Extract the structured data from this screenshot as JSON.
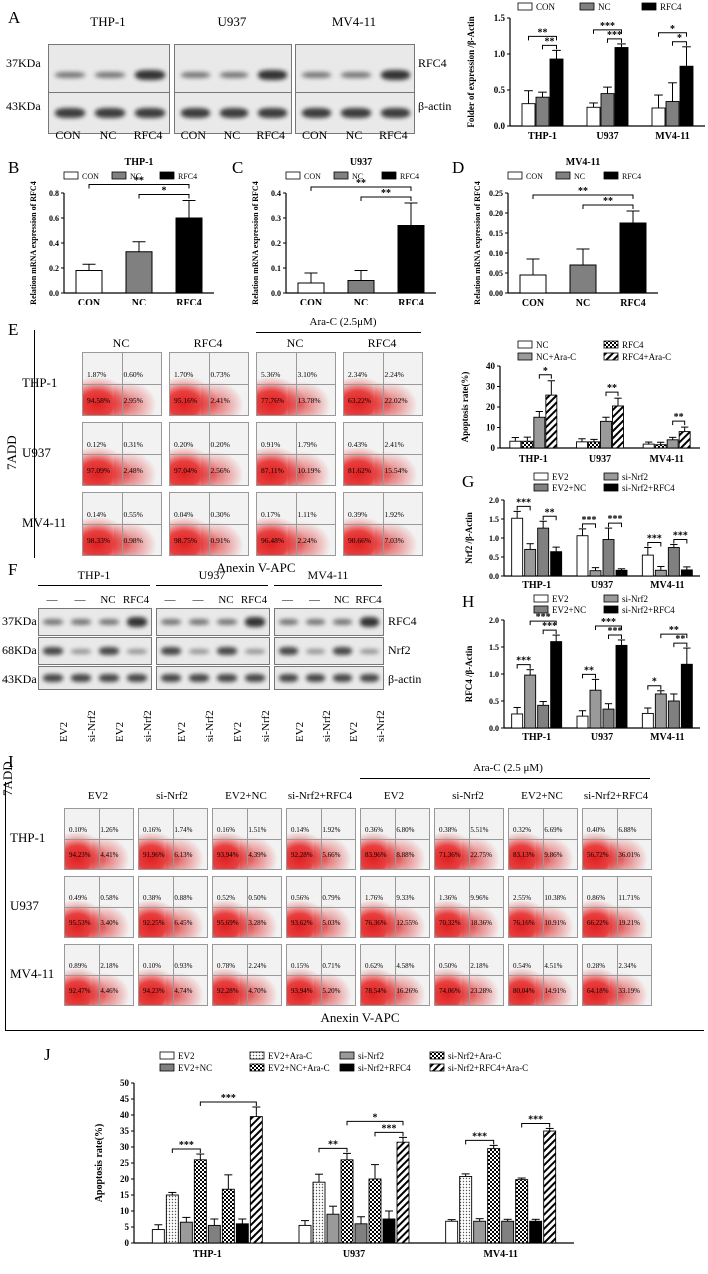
{
  "panels": {
    "A": "A",
    "B": "B",
    "C": "C",
    "D": "D",
    "E": "E",
    "F": "F",
    "G": "G",
    "H": "H",
    "I": "I",
    "J": "J"
  },
  "blotA": {
    "cells": [
      "THP-1",
      "U937",
      "MV4-11"
    ],
    "lanes": [
      "CON",
      "NC",
      "RFC4"
    ],
    "mw": [
      "37KDa",
      "43KDa"
    ],
    "proteins": [
      "RFC4",
      "β-actin"
    ]
  },
  "blotF": {
    "cells": [
      "THP-1",
      "U937",
      "MV4-11"
    ],
    "top": [
      "—",
      "—",
      "NC",
      "RFC4"
    ],
    "bottom": [
      "EV2",
      "si-Nrf2",
      "EV2",
      "si-Nrf2"
    ],
    "mw": [
      "37KDa",
      "68KDa",
      "43KDa"
    ],
    "proteins": [
      "RFC4",
      "Nrf2",
      "β-actin"
    ]
  },
  "flowE": {
    "cols": [
      "NC",
      "RFC4",
      "NC",
      "RFC4"
    ],
    "rows": [
      "THP-1",
      "U937",
      "MV4-11"
    ],
    "treatment": "Ara-C (2.5μM)",
    "xaxis": "Anexin V-APC",
    "yaxis": "7ADD",
    "quads": [
      [
        [
          "1.87%",
          "0.60%",
          "94.58%",
          "2.95%"
        ],
        [
          "1.70%",
          "0.73%",
          "95.16%",
          "2.41%"
        ],
        [
          "5.36%",
          "3.10%",
          "77.76%",
          "13.78%"
        ],
        [
          "2.34%",
          "2.24%",
          "63.22%",
          "22.02%"
        ]
      ],
      [
        [
          "0.12%",
          "0.31%",
          "97.09%",
          "2.48%"
        ],
        [
          "0.20%",
          "0.20%",
          "97.04%",
          "2.56%"
        ],
        [
          "0.91%",
          "1.79%",
          "87.11%",
          "10.19%"
        ],
        [
          "0.43%",
          "2.41%",
          "81.62%",
          "15.54%"
        ]
      ],
      [
        [
          "0.14%",
          "0.55%",
          "98.33%",
          "0.98%"
        ],
        [
          "0.04%",
          "0.30%",
          "98.75%",
          "0.91%"
        ],
        [
          "0.17%",
          "1.11%",
          "96.48%",
          "2.24%"
        ],
        [
          "0.39%",
          "1.92%",
          "90.66%",
          "7.03%"
        ]
      ]
    ]
  },
  "flowI": {
    "cols": [
      "EV2",
      "si-Nrf2",
      "EV2+NC",
      "si-Nrf2+RFC4",
      "EV2",
      "si-Nrf2",
      "EV2+NC",
      "si-Nrf2+RFC4"
    ],
    "rows": [
      "THP-1",
      "U937",
      "MV4-11"
    ],
    "treatment": "Ara-C (2.5 μM)",
    "xaxis": "Anexin V-APC",
    "yaxis": "7ADD",
    "quads": [
      [
        [
          "0.10%",
          "1.26%",
          "94.23%",
          "4.41%"
        ],
        [
          "0.16%",
          "1.74%",
          "91.96%",
          "6.13%"
        ],
        [
          "0.16%",
          "1.51%",
          "93.94%",
          "4.39%"
        ],
        [
          "0.14%",
          "1.92%",
          "92.28%",
          "5.66%"
        ],
        [
          "0.36%",
          "6.80%",
          "83.96%",
          "8.88%"
        ],
        [
          "0.38%",
          "5.51%",
          "71.36%",
          "22.75%"
        ],
        [
          "0.32%",
          "6.69%",
          "83.13%",
          "9.86%"
        ],
        [
          "0.40%",
          "6.88%",
          "56.72%",
          "36.01%"
        ]
      ],
      [
        [
          "0.49%",
          "0.58%",
          "95.53%",
          "3.40%"
        ],
        [
          "0.38%",
          "0.88%",
          "92.25%",
          "6.45%"
        ],
        [
          "0.52%",
          "0.50%",
          "95.69%",
          "3.28%"
        ],
        [
          "0.56%",
          "0.79%",
          "93.62%",
          "5.03%"
        ],
        [
          "1.76%",
          "9.33%",
          "76.36%",
          "12.55%"
        ],
        [
          "1.36%",
          "9.96%",
          "70.32%",
          "18.36%"
        ],
        [
          "2.55%",
          "10.38%",
          "76.16%",
          "10.91%"
        ],
        [
          "0.86%",
          "11.71%",
          "66.22%",
          "19.21%"
        ]
      ],
      [
        [
          "0.89%",
          "2.18%",
          "92.47%",
          "4.46%"
        ],
        [
          "0.10%",
          "0.93%",
          "94.23%",
          "4.74%"
        ],
        [
          "0.78%",
          "2.24%",
          "92.28%",
          "4.70%"
        ],
        [
          "0.15%",
          "0.71%",
          "93.94%",
          "5.20%"
        ],
        [
          "0.62%",
          "4.58%",
          "78.54%",
          "16.26%"
        ],
        [
          "0.50%",
          "2.18%",
          "74.06%",
          "23.28%"
        ],
        [
          "0.54%",
          "4.51%",
          "80.04%",
          "14.91%"
        ],
        [
          "0.28%",
          "2.34%",
          "64.18%",
          "33.19%"
        ]
      ]
    ]
  },
  "chart_data": [
    {
      "id": "A",
      "type": "bar",
      "categories": [
        "THP-1",
        "U937",
        "MV4-11"
      ],
      "ylabel": "Folder of expression /β-Actin",
      "ylim": [
        0,
        1.5
      ],
      "ticks": [
        "0.0",
        "0.5",
        "1.0",
        "1.5"
      ],
      "series": [
        {
          "name": "CON",
          "values": [
            0.31,
            0.26,
            0.25
          ],
          "err": [
            0.18,
            0.06,
            0.18
          ]
        },
        {
          "name": "NC",
          "values": [
            0.4,
            0.45,
            0.34
          ],
          "err": [
            0.07,
            0.09,
            0.26
          ]
        },
        {
          "name": "RFC4",
          "values": [
            0.93,
            1.09,
            0.83
          ],
          "err": [
            0.12,
            0.05,
            0.27
          ]
        }
      ],
      "sig": [
        [
          "**",
          "**"
        ],
        [
          "***",
          "***"
        ],
        [
          "*",
          "*"
        ]
      ]
    },
    {
      "id": "B",
      "type": "bar",
      "title": "THP-1",
      "categories": [
        "CON",
        "NC",
        "RFC4"
      ],
      "values": [
        0.18,
        0.33,
        0.6
      ],
      "err": [
        0.05,
        0.08,
        0.14
      ],
      "ylabel": "Relation mRNA expression of RFC4",
      "ylim": [
        0,
        0.8
      ],
      "ticks": [
        "0.0",
        "0.2",
        "0.4",
        "0.6",
        "0.8"
      ],
      "legend": [
        "CON",
        "NC",
        "RFC4"
      ],
      "sig": [
        "**",
        "*"
      ]
    },
    {
      "id": "C",
      "type": "bar",
      "title": "U937",
      "categories": [
        "CON",
        "NC",
        "RFC4"
      ],
      "values": [
        0.04,
        0.05,
        0.27
      ],
      "err": [
        0.04,
        0.04,
        0.09
      ],
      "ylabel": "Relation mRNA expression of RFC4",
      "ylim": [
        0,
        0.4
      ],
      "ticks": [
        "0.0",
        "0.1",
        "0.2",
        "0.3",
        "0.4"
      ],
      "legend": [
        "CON",
        "NC",
        "RFC4"
      ],
      "sig": [
        "**",
        "**"
      ]
    },
    {
      "id": "D",
      "type": "bar",
      "title": "MV4-11",
      "categories": [
        "CON",
        "NC",
        "RFC4"
      ],
      "values": [
        0.045,
        0.07,
        0.175
      ],
      "err": [
        0.04,
        0.04,
        0.03
      ],
      "ylabel": "Relation mRNA expression of RFC4",
      "ylim": [
        0,
        0.25
      ],
      "ticks": [
        "0.00",
        "0.05",
        "0.10",
        "0.15",
        "0.20",
        "0.25"
      ],
      "legend": [
        "CON",
        "NC",
        "RFC4"
      ],
      "sig": [
        "**",
        "**"
      ]
    },
    {
      "id": "E",
      "type": "bar",
      "categories": [
        "THP-1",
        "U937",
        "MV4-11"
      ],
      "ylabel": "Apoptosis rate(%)",
      "ylim": [
        0,
        40
      ],
      "ticks": [
        "0",
        "10",
        "20",
        "30",
        "40"
      ],
      "series": [
        {
          "name": "NC",
          "values": [
            3.3,
            3.0,
            1.9
          ],
          "err": [
            1.8,
            1.5,
            1.0
          ]
        },
        {
          "name": "RFC4",
          "values": [
            3.3,
            3.0,
            1.6
          ],
          "err": [
            2.0,
            1.2,
            1.2
          ]
        },
        {
          "name": "NC+Ara-C",
          "values": [
            15.0,
            13.0,
            4.0
          ],
          "err": [
            2.8,
            2.0,
            1.2
          ]
        },
        {
          "name": "RFC4+Ara-C",
          "values": [
            25.8,
            20.5,
            8.0
          ],
          "err": [
            7.0,
            3.8,
            2.2
          ]
        }
      ],
      "sig": [
        "*",
        "**",
        "**"
      ]
    },
    {
      "id": "G",
      "type": "bar",
      "categories": [
        "THP-1",
        "U937",
        "MV4-11"
      ],
      "ylabel": "Nrf2 /β-Actin",
      "ylim": [
        0,
        2.0
      ],
      "ticks": [
        "0.0",
        "0.5",
        "1.0",
        "1.5",
        "2.0"
      ],
      "series": [
        {
          "name": "EV2",
          "values": [
            1.52,
            1.06,
            0.55
          ],
          "err": [
            0.18,
            0.18,
            0.2
          ]
        },
        {
          "name": "si-Nrf2",
          "values": [
            0.7,
            0.14,
            0.15
          ],
          "err": [
            0.15,
            0.08,
            0.1
          ]
        },
        {
          "name": "EV2+NC",
          "values": [
            1.26,
            0.96,
            0.75
          ],
          "err": [
            0.18,
            0.3,
            0.08
          ]
        },
        {
          "name": "si-Nrf2+RFC4",
          "values": [
            0.64,
            0.15,
            0.16
          ],
          "err": [
            0.12,
            0.04,
            0.08
          ]
        }
      ],
      "sig": [
        [
          "***",
          "**"
        ],
        [
          "***",
          "***"
        ],
        [
          "***",
          "***"
        ]
      ]
    },
    {
      "id": "H",
      "type": "bar",
      "categories": [
        "THP-1",
        "U937",
        "MV4-11"
      ],
      "ylabel": "RFC4 /β-Actin",
      "ylim": [
        0,
        2.0
      ],
      "ticks": [
        "0.0",
        "0.5",
        "1.0",
        "1.5",
        "2.0"
      ],
      "series": [
        {
          "name": "EV2",
          "values": [
            0.26,
            0.22,
            0.27
          ],
          "err": [
            0.12,
            0.1,
            0.1
          ]
        },
        {
          "name": "si-Nrf2",
          "values": [
            0.98,
            0.7,
            0.63
          ],
          "err": [
            0.1,
            0.2,
            0.06
          ]
        },
        {
          "name": "EV2+NC",
          "values": [
            0.42,
            0.35,
            0.5
          ],
          "err": [
            0.07,
            0.1,
            0.13
          ]
        },
        {
          "name": "si-Nrf2+RFC4",
          "values": [
            1.6,
            1.53,
            1.18
          ],
          "err": [
            0.12,
            0.1,
            0.3
          ]
        }
      ],
      "sig": [
        [
          "***",
          "***",
          "***"
        ],
        [
          "**",
          "***",
          "***"
        ],
        [
          "*",
          "**",
          "**"
        ]
      ]
    },
    {
      "id": "J",
      "type": "bar",
      "categories": [
        "THP-1",
        "U937",
        "MV4-11"
      ],
      "ylabel": "Apoptosis rate(%)",
      "ylim": [
        0,
        50
      ],
      "ticks": [
        "0",
        "5",
        "10",
        "15",
        "20",
        "25",
        "30",
        "35",
        "40",
        "45",
        "50"
      ],
      "series": [
        {
          "name": "EV2",
          "values": [
            4.2,
            5.5,
            6.8
          ],
          "err": [
            1.5,
            1.5,
            0.5
          ]
        },
        {
          "name": "EV2+Ara-C",
          "values": [
            15.0,
            19.0,
            20.8
          ],
          "err": [
            0.8,
            2.5,
            0.8
          ]
        },
        {
          "name": "si-Nrf2",
          "values": [
            6.5,
            9.0,
            6.8
          ],
          "err": [
            1.5,
            2.5,
            0.8
          ]
        },
        {
          "name": "si-Nrf2+Ara-C",
          "values": [
            26.0,
            26.0,
            29.5
          ],
          "err": [
            1.8,
            2.0,
            1.0
          ]
        },
        {
          "name": "EV2+NC",
          "values": [
            5.5,
            6.0,
            6.8
          ],
          "err": [
            2.0,
            2.2,
            0.6
          ]
        },
        {
          "name": "EV2+NC+Ara-C",
          "values": [
            16.8,
            20.0,
            19.8
          ],
          "err": [
            4.5,
            4.5,
            0.5
          ]
        },
        {
          "name": "si-Nrf2+RFC4",
          "values": [
            6.0,
            7.5,
            6.8
          ],
          "err": [
            1.5,
            2.5,
            0.6
          ]
        },
        {
          "name": "si-Nrf2+RFC4+Ara-C",
          "values": [
            39.5,
            31.5,
            35.0
          ],
          "err": [
            3.0,
            1.5,
            0.8
          ]
        }
      ],
      "sig": [
        [
          "***",
          "***"
        ],
        [
          "**",
          "*",
          "***"
        ],
        [
          "***",
          "***"
        ]
      ]
    }
  ]
}
